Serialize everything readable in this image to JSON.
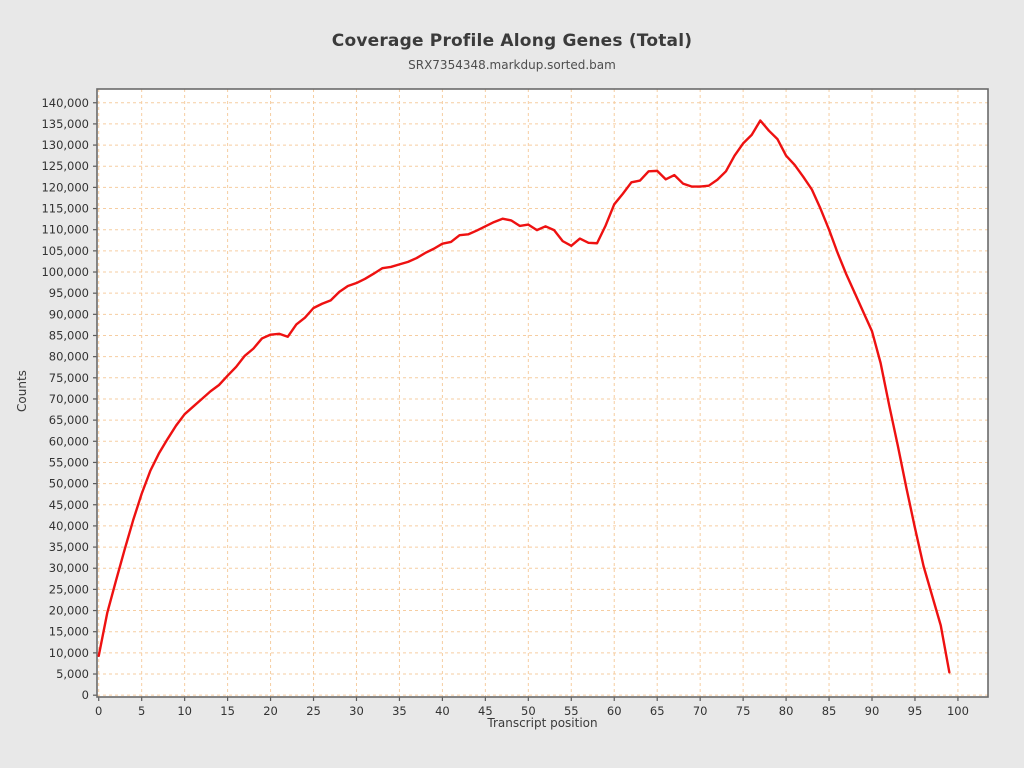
{
  "page": {
    "background_color": "#e8e8e8"
  },
  "chart_data": {
    "type": "line",
    "title": "Coverage Profile Along Genes (Total)",
    "subtitle": "SRX7354348.markdup.sorted.bam",
    "xlabel": "Transcript position",
    "ylabel": "Counts",
    "grid": true,
    "legend": "none",
    "plot_bg": "#ffffff",
    "grid_color": "#f6cda1",
    "border_color": "#6a6a6a",
    "tick_color": "#5a5a5a",
    "label_color": "#333333",
    "xlim": [
      -0.2,
      103.5
    ],
    "ylim": [
      -430,
      143250
    ],
    "x_ticks": [
      0,
      5,
      10,
      15,
      20,
      25,
      30,
      35,
      40,
      45,
      50,
      55,
      60,
      65,
      70,
      75,
      80,
      85,
      90,
      95,
      100
    ],
    "y_ticks": [
      0,
      5000,
      10000,
      15000,
      20000,
      25000,
      30000,
      35000,
      40000,
      45000,
      50000,
      55000,
      60000,
      65000,
      70000,
      75000,
      80000,
      85000,
      90000,
      95000,
      100000,
      105000,
      110000,
      115000,
      120000,
      125000,
      130000,
      135000,
      140000
    ],
    "series": [
      {
        "name": "SRX7354348.markdup.sorted.bam",
        "color": "#ee1111",
        "line_width": 2.4,
        "x_start": 0,
        "x_step": 1,
        "values": [
          9300,
          19500,
          27000,
          34300,
          41300,
          47600,
          53000,
          57100,
          60500,
          63700,
          66400,
          68200,
          70000,
          71800,
          73300,
          75500,
          77600,
          80200,
          81900,
          84300,
          85200,
          85400,
          84700,
          87600,
          89200,
          91500,
          92500,
          93300,
          95300,
          96700,
          97400,
          98400,
          99600,
          100900,
          101200,
          101800,
          102400,
          103300,
          104500,
          105500,
          106700,
          107100,
          108700,
          108900,
          109800,
          110800,
          111800,
          112600,
          112200,
          110900,
          111200,
          109900,
          110800,
          109900,
          107300,
          106200,
          107900,
          106900,
          106800,
          111000,
          116000,
          118500,
          121200,
          121600,
          123800,
          123900,
          121900,
          122900,
          120900,
          120200,
          120200,
          120400,
          121800,
          123800,
          127500,
          130400,
          132400,
          135800,
          133400,
          131400,
          127500,
          125300,
          122500,
          119500,
          115000,
          110000,
          104500,
          99500,
          95000,
          90500,
          86000,
          78500,
          68500,
          59000,
          49000,
          39500,
          30500,
          23500,
          16500,
          5400
        ]
      }
    ]
  }
}
